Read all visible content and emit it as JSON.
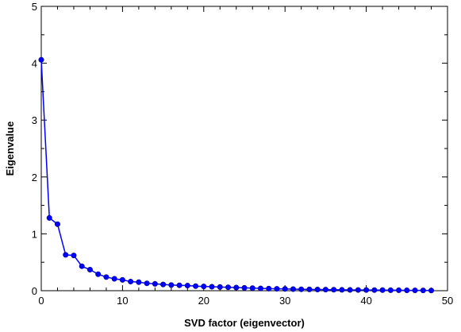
{
  "chart_data": {
    "type": "line",
    "title": "",
    "xlabel": "SVD factor (eigenvector)",
    "ylabel": "Eigenvalue",
    "xlim": [
      0,
      50
    ],
    "ylim": [
      0,
      5
    ],
    "xticks": [
      0,
      10,
      20,
      30,
      40,
      50
    ],
    "yticks": [
      0,
      1,
      2,
      3,
      4,
      5
    ],
    "grid": false,
    "legend": "none",
    "series": [
      {
        "color": "#0000ff",
        "marker": "circle",
        "x": [
          0,
          1,
          2,
          3,
          4,
          5,
          6,
          7,
          8,
          9,
          10,
          11,
          12,
          13,
          14,
          15,
          16,
          17,
          18,
          19,
          20,
          21,
          22,
          23,
          24,
          25,
          26,
          27,
          28,
          29,
          30,
          31,
          32,
          33,
          34,
          35,
          36,
          37,
          38,
          39,
          40,
          41,
          42,
          43,
          44,
          45,
          46,
          47,
          48
        ],
        "y": [
          4.06,
          1.28,
          1.17,
          0.63,
          0.62,
          0.43,
          0.37,
          0.29,
          0.24,
          0.21,
          0.19,
          0.16,
          0.15,
          0.13,
          0.12,
          0.11,
          0.1,
          0.095,
          0.09,
          0.08,
          0.075,
          0.07,
          0.065,
          0.06,
          0.055,
          0.05,
          0.045,
          0.04,
          0.037,
          0.034,
          0.031,
          0.028,
          0.025,
          0.023,
          0.021,
          0.019,
          0.017,
          0.015,
          0.014,
          0.013,
          0.012,
          0.011,
          0.01,
          0.009,
          0.008,
          0.007,
          0.006,
          0.005,
          0.004
        ]
      }
    ]
  }
}
